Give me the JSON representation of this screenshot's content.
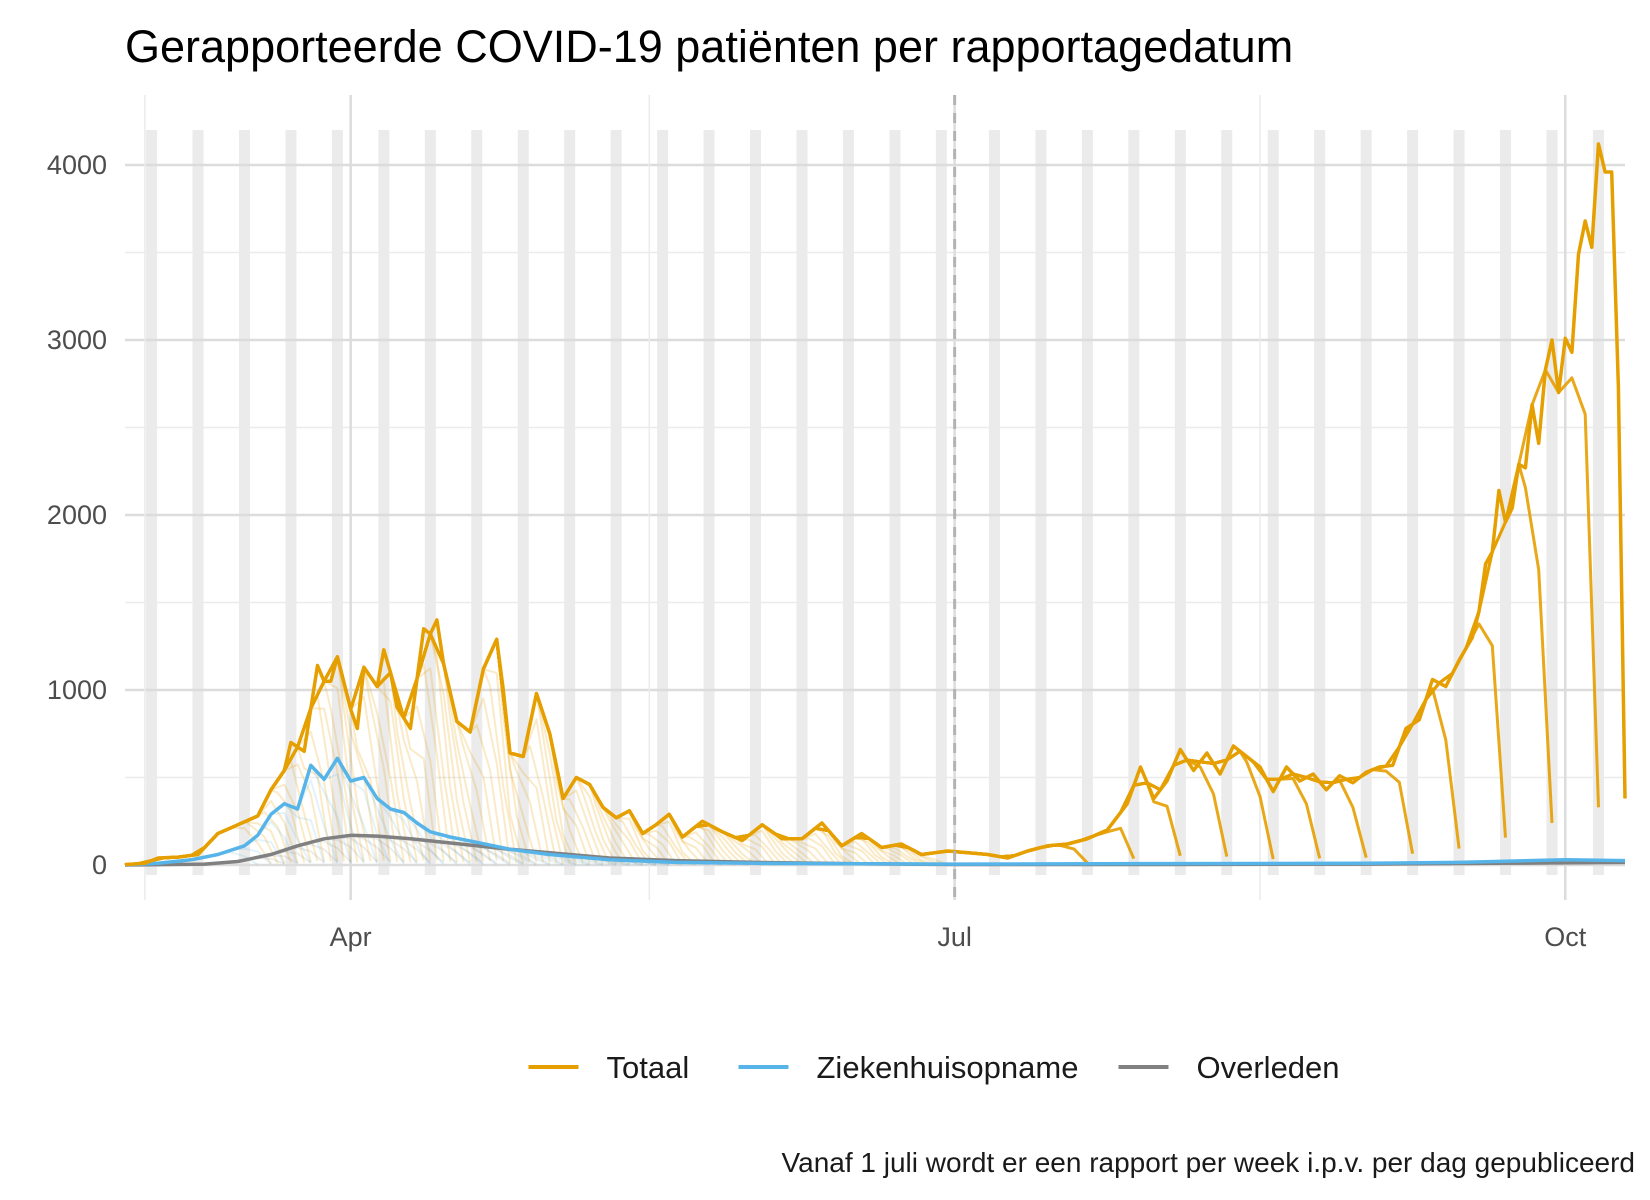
{
  "chart_data": {
    "type": "line",
    "title": "Gerapporteerde COVID-19 patiënten per rapportagedatum",
    "caption": "Vanaf 1 juli wordt er een rapport per week i.p.v. per dag gepubliceerd",
    "xlabel": "",
    "ylabel": "",
    "x_range": [
      "2020-02-27",
      "2020-10-10"
    ],
    "ylim": [
      -200,
      4200
    ],
    "y_ticks": [
      {
        "value": 0,
        "label": "0"
      },
      {
        "value": 1000,
        "label": "1000"
      },
      {
        "value": 2000,
        "label": "2000"
      },
      {
        "value": 3000,
        "label": "3000"
      },
      {
        "value": 4000,
        "label": "4000"
      }
    ],
    "x_ticks": [
      {
        "date": "2020-04-01",
        "label": "Apr"
      },
      {
        "date": "2020-07-01",
        "label": "Jul"
      },
      {
        "date": "2020-10-01",
        "label": "Oct"
      }
    ],
    "x_minor": [
      "2020-03-01",
      "2020-05-16",
      "2020-08-16"
    ],
    "reference_line": {
      "date": "2020-07-01",
      "style": "dashed",
      "color": "#b3b3b3"
    },
    "weekly_report_dates": [
      "2020-07-07",
      "2020-07-14",
      "2020-07-21",
      "2020-07-28",
      "2020-08-04",
      "2020-08-11",
      "2020-08-18",
      "2020-08-25",
      "2020-09-01",
      "2020-09-08",
      "2020-09-15",
      "2020-09-22",
      "2020-09-29",
      "2020-10-06"
    ],
    "grid": true,
    "legend_position": "bottom",
    "series": [
      {
        "name": "Totaal",
        "color": "#E69F00",
        "points": [
          [
            "2020-02-27",
            2
          ],
          [
            "2020-03-01",
            10
          ],
          [
            "2020-03-03",
            40
          ],
          [
            "2020-03-06",
            45
          ],
          [
            "2020-03-09",
            60
          ],
          [
            "2020-03-12",
            180
          ],
          [
            "2020-03-15",
            230
          ],
          [
            "2020-03-18",
            280
          ],
          [
            "2020-03-20",
            430
          ],
          [
            "2020-03-22",
            540
          ],
          [
            "2020-03-23",
            700
          ],
          [
            "2020-03-25",
            650
          ],
          [
            "2020-03-27",
            1140
          ],
          [
            "2020-03-28",
            1050
          ],
          [
            "2020-03-29",
            1050
          ],
          [
            "2020-03-30",
            1190
          ],
          [
            "2020-04-01",
            890
          ],
          [
            "2020-04-02",
            780
          ],
          [
            "2020-04-03",
            1130
          ],
          [
            "2020-04-05",
            1020
          ],
          [
            "2020-04-06",
            1230
          ],
          [
            "2020-04-07",
            1100
          ],
          [
            "2020-04-08",
            900
          ],
          [
            "2020-04-10",
            780
          ],
          [
            "2020-04-12",
            1350
          ],
          [
            "2020-04-13",
            1320
          ],
          [
            "2020-04-14",
            1400
          ],
          [
            "2020-04-15",
            1150
          ],
          [
            "2020-04-17",
            820
          ],
          [
            "2020-04-19",
            760
          ],
          [
            "2020-04-21",
            1120
          ],
          [
            "2020-04-23",
            1290
          ],
          [
            "2020-04-24",
            1000
          ],
          [
            "2020-04-25",
            640
          ],
          [
            "2020-04-27",
            620
          ],
          [
            "2020-04-29",
            980
          ],
          [
            "2020-05-01",
            750
          ],
          [
            "2020-05-03",
            380
          ],
          [
            "2020-05-05",
            500
          ],
          [
            "2020-05-07",
            460
          ],
          [
            "2020-05-09",
            330
          ],
          [
            "2020-05-11",
            270
          ],
          [
            "2020-05-13",
            310
          ],
          [
            "2020-05-15",
            180
          ],
          [
            "2020-05-17",
            230
          ],
          [
            "2020-05-19",
            290
          ],
          [
            "2020-05-21",
            160
          ],
          [
            "2020-05-24",
            250
          ],
          [
            "2020-05-27",
            190
          ],
          [
            "2020-05-30",
            140
          ],
          [
            "2020-06-02",
            230
          ],
          [
            "2020-06-05",
            150
          ],
          [
            "2020-06-08",
            150
          ],
          [
            "2020-06-11",
            240
          ],
          [
            "2020-06-14",
            110
          ],
          [
            "2020-06-17",
            180
          ],
          [
            "2020-06-20",
            100
          ],
          [
            "2020-06-23",
            120
          ],
          [
            "2020-06-26",
            60
          ],
          [
            "2020-06-30",
            80
          ],
          [
            "2020-07-03",
            70
          ],
          [
            "2020-07-06",
            60
          ],
          [
            "2020-07-09",
            40
          ],
          [
            "2020-07-12",
            80
          ],
          [
            "2020-07-15",
            110
          ],
          [
            "2020-07-18",
            120
          ],
          [
            "2020-07-21",
            150
          ],
          [
            "2020-07-24",
            200
          ],
          [
            "2020-07-27",
            350
          ],
          [
            "2020-07-29",
            560
          ],
          [
            "2020-07-31",
            380
          ],
          [
            "2020-08-02",
            480
          ],
          [
            "2020-08-04",
            660
          ],
          [
            "2020-08-06",
            540
          ],
          [
            "2020-08-08",
            640
          ],
          [
            "2020-08-10",
            520
          ],
          [
            "2020-08-12",
            680
          ],
          [
            "2020-08-14",
            620
          ],
          [
            "2020-08-16",
            560
          ],
          [
            "2020-08-18",
            420
          ],
          [
            "2020-08-20",
            560
          ],
          [
            "2020-08-22",
            480
          ],
          [
            "2020-08-24",
            520
          ],
          [
            "2020-08-26",
            430
          ],
          [
            "2020-08-28",
            510
          ],
          [
            "2020-08-30",
            470
          ],
          [
            "2020-09-01",
            530
          ],
          [
            "2020-09-03",
            560
          ],
          [
            "2020-09-05",
            570
          ],
          [
            "2020-09-07",
            780
          ],
          [
            "2020-09-09",
            830
          ],
          [
            "2020-09-11",
            1060
          ],
          [
            "2020-09-13",
            1020
          ],
          [
            "2020-09-15",
            1170
          ],
          [
            "2020-09-17",
            1300
          ],
          [
            "2020-09-18",
            1450
          ],
          [
            "2020-09-19",
            1720
          ],
          [
            "2020-09-20",
            1790
          ],
          [
            "2020-09-21",
            2140
          ],
          [
            "2020-09-22",
            1960
          ],
          [
            "2020-09-23",
            2040
          ],
          [
            "2020-09-24",
            2290
          ],
          [
            "2020-09-25",
            2270
          ],
          [
            "2020-09-26",
            2630
          ],
          [
            "2020-09-27",
            2410
          ],
          [
            "2020-09-28",
            2830
          ],
          [
            "2020-09-29",
            3000
          ],
          [
            "2020-09-30",
            2700
          ],
          [
            "2020-10-01",
            3010
          ],
          [
            "2020-10-02",
            2930
          ],
          [
            "2020-10-03",
            3490
          ],
          [
            "2020-10-04",
            3680
          ],
          [
            "2020-10-05",
            3530
          ],
          [
            "2020-10-06",
            4120
          ],
          [
            "2020-10-07",
            3960
          ],
          [
            "2020-10-08",
            3960
          ],
          [
            "2020-10-09",
            2730
          ],
          [
            "2020-10-10",
            380
          ]
        ]
      },
      {
        "name": "Ziekenhuisopname",
        "color": "#56B4E9",
        "points": [
          [
            "2020-02-27",
            0
          ],
          [
            "2020-03-03",
            10
          ],
          [
            "2020-03-08",
            30
          ],
          [
            "2020-03-12",
            60
          ],
          [
            "2020-03-16",
            110
          ],
          [
            "2020-03-18",
            170
          ],
          [
            "2020-03-20",
            290
          ],
          [
            "2020-03-22",
            350
          ],
          [
            "2020-03-24",
            320
          ],
          [
            "2020-03-26",
            570
          ],
          [
            "2020-03-28",
            490
          ],
          [
            "2020-03-30",
            610
          ],
          [
            "2020-04-01",
            480
          ],
          [
            "2020-04-03",
            500
          ],
          [
            "2020-04-05",
            380
          ],
          [
            "2020-04-07",
            320
          ],
          [
            "2020-04-09",
            300
          ],
          [
            "2020-04-11",
            240
          ],
          [
            "2020-04-13",
            190
          ],
          [
            "2020-04-16",
            160
          ],
          [
            "2020-04-20",
            130
          ],
          [
            "2020-04-25",
            90
          ],
          [
            "2020-05-01",
            60
          ],
          [
            "2020-05-10",
            30
          ],
          [
            "2020-05-20",
            15
          ],
          [
            "2020-06-01",
            10
          ],
          [
            "2020-07-01",
            5
          ],
          [
            "2020-08-01",
            8
          ],
          [
            "2020-09-01",
            10
          ],
          [
            "2020-09-15",
            15
          ],
          [
            "2020-10-01",
            30
          ],
          [
            "2020-10-10",
            25
          ]
        ]
      },
      {
        "name": "Overleden",
        "color": "#808080",
        "points": [
          [
            "2020-02-27",
            0
          ],
          [
            "2020-03-10",
            5
          ],
          [
            "2020-03-15",
            20
          ],
          [
            "2020-03-20",
            60
          ],
          [
            "2020-03-24",
            110
          ],
          [
            "2020-03-28",
            150
          ],
          [
            "2020-04-01",
            170
          ],
          [
            "2020-04-05",
            165
          ],
          [
            "2020-04-10",
            150
          ],
          [
            "2020-04-15",
            130
          ],
          [
            "2020-04-20",
            110
          ],
          [
            "2020-04-25",
            90
          ],
          [
            "2020-05-01",
            70
          ],
          [
            "2020-05-10",
            40
          ],
          [
            "2020-05-20",
            25
          ],
          [
            "2020-06-01",
            15
          ],
          [
            "2020-06-15",
            8
          ],
          [
            "2020-07-01",
            3
          ],
          [
            "2020-08-01",
            3
          ],
          [
            "2020-09-01",
            5
          ],
          [
            "2020-09-20",
            10
          ],
          [
            "2020-10-10",
            15
          ]
        ]
      }
    ]
  }
}
